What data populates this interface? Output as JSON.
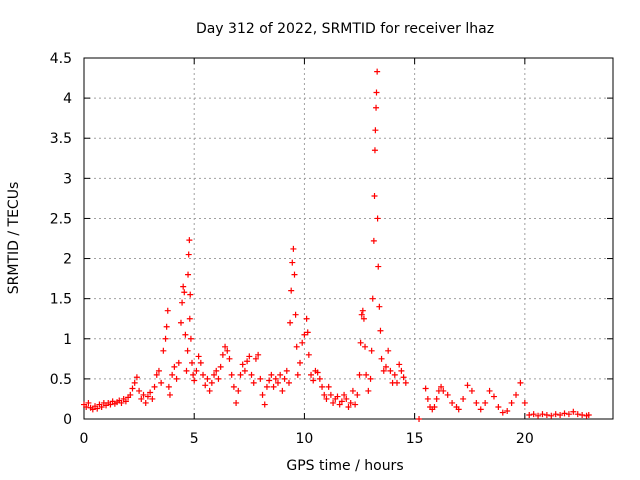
{
  "chart_data": {
    "type": "scatter",
    "title": "Day 312 of 2022, SRMTID for receiver lhaz",
    "xlabel": "GPS time / hours",
    "ylabel": "SRMTID / TECUs",
    "xlim": [
      0,
      24
    ],
    "ylim": [
      0,
      4.5
    ],
    "xticks": [
      0,
      5,
      10,
      15,
      20
    ],
    "yticks": [
      0,
      0.5,
      1,
      1.5,
      2,
      2.5,
      3,
      3.5,
      4,
      4.5
    ],
    "xtick_labels": [
      "0",
      "5",
      "10",
      "15",
      "20"
    ],
    "ytick_labels": [
      "0",
      "0.5",
      "1",
      "1.5",
      "2",
      "2.5",
      "3",
      "3.5",
      "4",
      "4.5"
    ],
    "grid": true,
    "marker": "+",
    "color": "#ff0000",
    "series": [
      {
        "name": "SRMTID",
        "points": [
          [
            0.0,
            0.18
          ],
          [
            0.1,
            0.15
          ],
          [
            0.2,
            0.2
          ],
          [
            0.3,
            0.14
          ],
          [
            0.4,
            0.12
          ],
          [
            0.5,
            0.16
          ],
          [
            0.6,
            0.13
          ],
          [
            0.7,
            0.18
          ],
          [
            0.8,
            0.15
          ],
          [
            0.9,
            0.2
          ],
          [
            1.0,
            0.17
          ],
          [
            1.1,
            0.2
          ],
          [
            1.2,
            0.18
          ],
          [
            1.3,
            0.22
          ],
          [
            1.4,
            0.19
          ],
          [
            1.5,
            0.21
          ],
          [
            1.6,
            0.23
          ],
          [
            1.7,
            0.2
          ],
          [
            1.8,
            0.25
          ],
          [
            1.9,
            0.22
          ],
          [
            2.0,
            0.27
          ],
          [
            2.1,
            0.3
          ],
          [
            2.2,
            0.38
          ],
          [
            2.3,
            0.45
          ],
          [
            2.4,
            0.52
          ],
          [
            2.5,
            0.35
          ],
          [
            2.6,
            0.25
          ],
          [
            2.7,
            0.3
          ],
          [
            2.8,
            0.2
          ],
          [
            2.9,
            0.28
          ],
          [
            3.0,
            0.33
          ],
          [
            3.1,
            0.25
          ],
          [
            3.2,
            0.4
          ],
          [
            3.3,
            0.55
          ],
          [
            3.4,
            0.6
          ],
          [
            3.5,
            0.45
          ],
          [
            3.6,
            0.85
          ],
          [
            3.7,
            1.0
          ],
          [
            3.75,
            1.15
          ],
          [
            3.8,
            1.35
          ],
          [
            3.85,
            0.4
          ],
          [
            3.9,
            0.3
          ],
          [
            4.0,
            0.55
          ],
          [
            4.1,
            0.65
          ],
          [
            4.2,
            0.5
          ],
          [
            4.3,
            0.7
          ],
          [
            4.4,
            1.2
          ],
          [
            4.45,
            1.45
          ],
          [
            4.5,
            1.65
          ],
          [
            4.55,
            1.58
          ],
          [
            4.6,
            1.05
          ],
          [
            4.65,
            0.6
          ],
          [
            4.7,
            0.85
          ],
          [
            4.72,
            1.8
          ],
          [
            4.75,
            2.05
          ],
          [
            4.78,
            2.23
          ],
          [
            4.8,
            1.25
          ],
          [
            4.82,
            1.55
          ],
          [
            4.85,
            1.0
          ],
          [
            4.9,
            0.7
          ],
          [
            4.95,
            0.55
          ],
          [
            5.0,
            0.48
          ],
          [
            5.1,
            0.6
          ],
          [
            5.2,
            0.78
          ],
          [
            5.3,
            0.7
          ],
          [
            5.4,
            0.55
          ],
          [
            5.5,
            0.42
          ],
          [
            5.6,
            0.5
          ],
          [
            5.7,
            0.35
          ],
          [
            5.8,
            0.45
          ],
          [
            5.9,
            0.55
          ],
          [
            6.0,
            0.6
          ],
          [
            6.1,
            0.5
          ],
          [
            6.2,
            0.65
          ],
          [
            6.3,
            0.8
          ],
          [
            6.4,
            0.9
          ],
          [
            6.5,
            0.85
          ],
          [
            6.6,
            0.75
          ],
          [
            6.7,
            0.55
          ],
          [
            6.8,
            0.4
          ],
          [
            6.9,
            0.2
          ],
          [
            7.0,
            0.35
          ],
          [
            7.1,
            0.55
          ],
          [
            7.2,
            0.68
          ],
          [
            7.3,
            0.6
          ],
          [
            7.4,
            0.72
          ],
          [
            7.5,
            0.78
          ],
          [
            7.6,
            0.55
          ],
          [
            7.7,
            0.45
          ],
          [
            7.8,
            0.75
          ],
          [
            7.9,
            0.8
          ],
          [
            8.0,
            0.5
          ],
          [
            8.1,
            0.3
          ],
          [
            8.2,
            0.18
          ],
          [
            8.3,
            0.4
          ],
          [
            8.4,
            0.48
          ],
          [
            8.5,
            0.55
          ],
          [
            8.6,
            0.4
          ],
          [
            8.7,
            0.5
          ],
          [
            8.8,
            0.45
          ],
          [
            8.9,
            0.55
          ],
          [
            9.0,
            0.35
          ],
          [
            9.1,
            0.5
          ],
          [
            9.2,
            0.6
          ],
          [
            9.3,
            0.45
          ],
          [
            9.35,
            1.2
          ],
          [
            9.4,
            1.6
          ],
          [
            9.45,
            1.95
          ],
          [
            9.5,
            2.12
          ],
          [
            9.55,
            1.8
          ],
          [
            9.6,
            1.3
          ],
          [
            9.65,
            0.9
          ],
          [
            9.7,
            0.55
          ],
          [
            9.8,
            0.7
          ],
          [
            9.9,
            0.95
          ],
          [
            10.0,
            1.05
          ],
          [
            10.1,
            1.25
          ],
          [
            10.15,
            1.08
          ],
          [
            10.2,
            0.8
          ],
          [
            10.3,
            0.55
          ],
          [
            10.4,
            0.48
          ],
          [
            10.5,
            0.6
          ],
          [
            10.6,
            0.58
          ],
          [
            10.7,
            0.5
          ],
          [
            10.8,
            0.4
          ],
          [
            10.9,
            0.3
          ],
          [
            11.0,
            0.25
          ],
          [
            11.1,
            0.4
          ],
          [
            11.2,
            0.3
          ],
          [
            11.3,
            0.2
          ],
          [
            11.4,
            0.25
          ],
          [
            11.5,
            0.28
          ],
          [
            11.6,
            0.18
          ],
          [
            11.7,
            0.22
          ],
          [
            11.8,
            0.3
          ],
          [
            11.9,
            0.25
          ],
          [
            12.0,
            0.15
          ],
          [
            12.1,
            0.2
          ],
          [
            12.2,
            0.35
          ],
          [
            12.3,
            0.18
          ],
          [
            12.4,
            0.3
          ],
          [
            12.5,
            0.55
          ],
          [
            12.55,
            0.95
          ],
          [
            12.6,
            1.3
          ],
          [
            12.65,
            1.35
          ],
          [
            12.7,
            1.25
          ],
          [
            12.75,
            0.9
          ],
          [
            12.8,
            0.55
          ],
          [
            12.9,
            0.35
          ],
          [
            13.0,
            0.5
          ],
          [
            13.05,
            0.85
          ],
          [
            13.1,
            1.5
          ],
          [
            13.15,
            2.22
          ],
          [
            13.18,
            2.78
          ],
          [
            13.2,
            3.35
          ],
          [
            13.22,
            3.6
          ],
          [
            13.25,
            3.88
          ],
          [
            13.27,
            4.07
          ],
          [
            13.3,
            4.33
          ],
          [
            13.32,
            2.5
          ],
          [
            13.35,
            1.9
          ],
          [
            13.4,
            1.4
          ],
          [
            13.45,
            1.1
          ],
          [
            13.5,
            0.75
          ],
          [
            13.6,
            0.6
          ],
          [
            13.7,
            0.65
          ],
          [
            13.8,
            0.85
          ],
          [
            13.9,
            0.6
          ],
          [
            14.0,
            0.45
          ],
          [
            14.1,
            0.55
          ],
          [
            14.2,
            0.45
          ],
          [
            14.3,
            0.68
          ],
          [
            14.4,
            0.6
          ],
          [
            14.5,
            0.52
          ],
          [
            14.6,
            0.45
          ],
          [
            15.2,
            0.0
          ],
          [
            15.5,
            0.38
          ],
          [
            15.6,
            0.25
          ],
          [
            15.7,
            0.15
          ],
          [
            15.8,
            0.12
          ],
          [
            15.9,
            0.15
          ],
          [
            16.0,
            0.25
          ],
          [
            16.1,
            0.35
          ],
          [
            16.2,
            0.4
          ],
          [
            16.3,
            0.35
          ],
          [
            16.5,
            0.3
          ],
          [
            16.7,
            0.2
          ],
          [
            16.9,
            0.15
          ],
          [
            17.0,
            0.12
          ],
          [
            17.2,
            0.25
          ],
          [
            17.4,
            0.42
          ],
          [
            17.6,
            0.35
          ],
          [
            17.8,
            0.2
          ],
          [
            18.0,
            0.12
          ],
          [
            18.2,
            0.2
          ],
          [
            18.4,
            0.35
          ],
          [
            18.6,
            0.28
          ],
          [
            18.8,
            0.15
          ],
          [
            19.0,
            0.08
          ],
          [
            19.2,
            0.1
          ],
          [
            19.4,
            0.2
          ],
          [
            19.6,
            0.3
          ],
          [
            19.8,
            0.45
          ],
          [
            20.0,
            0.2
          ],
          [
            20.2,
            0.05
          ],
          [
            20.4,
            0.06
          ],
          [
            20.6,
            0.04
          ],
          [
            20.8,
            0.06
          ],
          [
            21.0,
            0.05
          ],
          [
            21.2,
            0.04
          ],
          [
            21.4,
            0.06
          ],
          [
            21.6,
            0.05
          ],
          [
            21.8,
            0.07
          ],
          [
            22.0,
            0.06
          ],
          [
            22.2,
            0.09
          ],
          [
            22.4,
            0.06
          ],
          [
            22.6,
            0.05
          ],
          [
            22.8,
            0.04
          ],
          [
            22.9,
            0.05
          ]
        ]
      }
    ]
  }
}
